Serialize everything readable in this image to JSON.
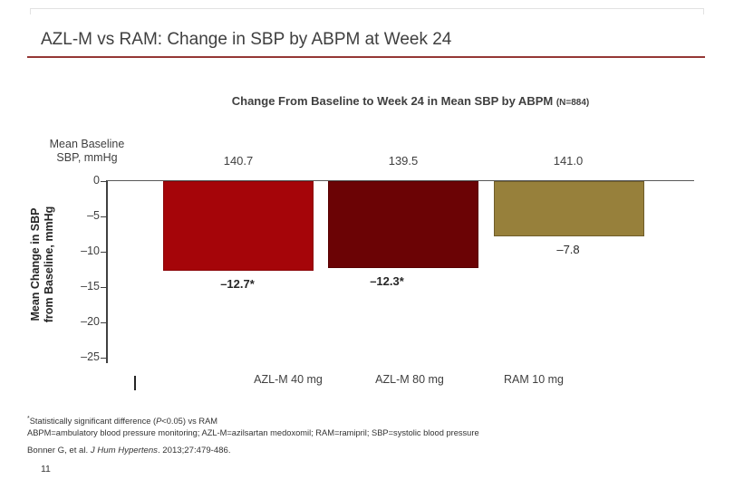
{
  "slide": {
    "title": "AZL-M vs RAM: Change in SBP by ABPM at Week 24",
    "page_number": "11"
  },
  "chart": {
    "subtitle": "Change From Baseline to Week 24 in Mean SBP by ABPM ",
    "subtitle_note": "(N=884)"
  },
  "chart_data": {
    "type": "bar",
    "title": "Change From Baseline to Week 24 in Mean SBP by ABPM (N=884)",
    "categories": [
      "AZL-M 40 mg",
      "AZL-M 80 mg",
      "RAM 10 mg"
    ],
    "values": [
      -12.7,
      -12.3,
      -7.8
    ],
    "value_labels": [
      "–12.7*",
      "–12.3*",
      "–7.8"
    ],
    "value_label_bold": [
      true,
      true,
      false
    ],
    "bar_colors": [
      "#a50509",
      "#6b0305",
      "#97803b"
    ],
    "bar_border_colors": [
      "#8a0407",
      "#570203",
      "#6f5d2a"
    ],
    "baseline_header": "Mean Baseline\nSBP, mmHg",
    "baseline_values": [
      "140.7",
      "139.5",
      "141.0"
    ],
    "ylabel": "Mean Change in SBP\nfrom Baseline, mmHg",
    "yticks": [
      0,
      -5,
      -10,
      -15,
      -20,
      -25
    ],
    "ytick_labels": [
      "0",
      "–5",
      "–10",
      "–15",
      "–20",
      "–25"
    ],
    "ylim": [
      -25,
      0
    ],
    "grid": false,
    "legend": false
  },
  "footnotes": {
    "line1": {
      "sup": "*",
      "a": "Statistically significant difference (",
      "i": "P",
      "b": "<0.05) vs RAM"
    },
    "line2": "ABPM=ambulatory blood pressure monitoring; AZL-M=azilsartan medoxomil; RAM=ramipril; SBP=systolic blood pressure",
    "citation": {
      "a": "Bonner G, et al. ",
      "i": "J Hum Hypertens",
      "b": ". 2013;27:479-486."
    }
  }
}
